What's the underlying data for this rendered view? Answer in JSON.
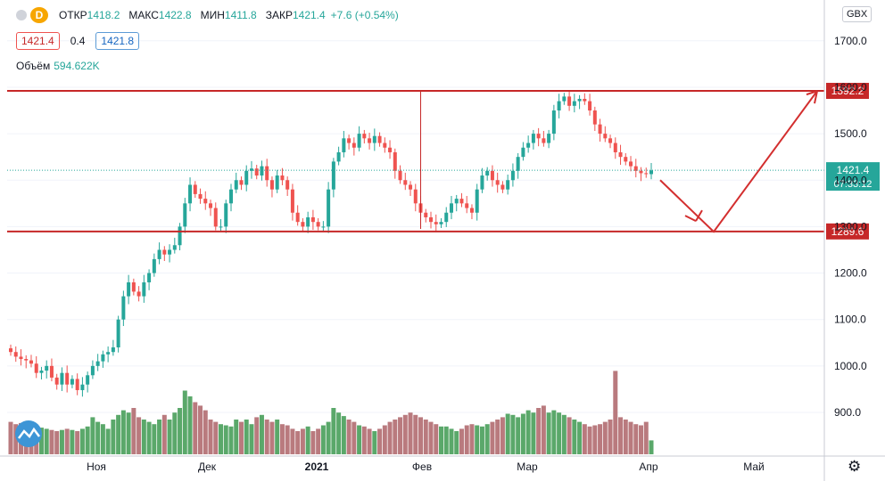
{
  "header": {
    "symbol_badge": "D",
    "open_label": "ОТКР",
    "open": "1418.2",
    "high_label": "МАКС",
    "high": "1422.8",
    "low_label": "МИН",
    "low": "1411.8",
    "close_label": "ЗАКР",
    "close": "1421.4",
    "change": "+7.6 (+0.54%)"
  },
  "quote": {
    "bid": "1421.4",
    "spread": "0.4",
    "ask": "1421.8"
  },
  "volume": {
    "label": "Объём",
    "value": "594.622K"
  },
  "currency_label": "GBX",
  "colors": {
    "up": "#26a69a",
    "down": "#ef5350",
    "vol_up": "#5aa86a",
    "vol_down": "#b97a7e",
    "level": "#c62828"
  },
  "chart_data": {
    "type": "candlestick",
    "y_ticks": [
      900,
      1000,
      1100,
      1200,
      1300,
      1400,
      1500,
      1600,
      1700
    ],
    "y_tick_labels": [
      "900.0",
      "1000.0",
      "1100.0",
      "1200.0",
      "1300.0",
      "1400.0",
      "1500.0",
      "1600.0",
      "1700.0"
    ],
    "x_labels": [
      "Ноя",
      "Дек",
      "2021",
      "Фев",
      "Мар",
      "Апр",
      "Май"
    ],
    "levels": [
      {
        "value": 1592.2,
        "label": "1592.2"
      },
      {
        "value": 1289.6,
        "label": "1289.6"
      }
    ],
    "last_price": {
      "value": 1421.4,
      "label": "1421.4",
      "timer": "07:33:12"
    },
    "projection": [
      [
        1400,
        1378
      ],
      [
        1460,
        1300
      ],
      [
        1600,
        1583
      ]
    ],
    "closes": [
      1030,
      1020,
      1015,
      1012,
      1005,
      985,
      990,
      1000,
      975,
      960,
      985,
      960,
      972,
      948,
      960,
      980,
      1000,
      1010,
      1025,
      1030,
      1040,
      1100,
      1150,
      1180,
      1160,
      1150,
      1180,
      1200,
      1230,
      1250,
      1240,
      1250,
      1260,
      1300,
      1350,
      1390,
      1370,
      1360,
      1350,
      1340,
      1300,
      1300,
      1350,
      1380,
      1400,
      1390,
      1420,
      1425,
      1410,
      1430,
      1400,
      1380,
      1410,
      1400,
      1380,
      1330,
      1310,
      1300,
      1320,
      1310,
      1300,
      1300,
      1380,
      1440,
      1460,
      1490,
      1480,
      1470,
      1500,
      1490,
      1480,
      1495,
      1480,
      1470,
      1460,
      1420,
      1400,
      1390,
      1380,
      1350,
      1330,
      1320,
      1310,
      1305,
      1310,
      1330,
      1350,
      1360,
      1350,
      1340,
      1330,
      1380,
      1410,
      1420,
      1400,
      1390,
      1380,
      1400,
      1420,
      1450,
      1470,
      1480,
      1500,
      1490,
      1480,
      1500,
      1550,
      1570,
      1580,
      1560,
      1570,
      1575,
      1570,
      1550,
      1520,
      1500,
      1490,
      1480,
      1460,
      1450,
      1440,
      1430,
      1420,
      1415,
      1413,
      1421
    ],
    "volumes": [
      0.28,
      0.26,
      0.27,
      0.25,
      0.24,
      0.22,
      0.23,
      0.22,
      0.21,
      0.2,
      0.21,
      0.22,
      0.21,
      0.2,
      0.22,
      0.24,
      0.32,
      0.28,
      0.26,
      0.22,
      0.3,
      0.34,
      0.38,
      0.36,
      0.4,
      0.32,
      0.3,
      0.28,
      0.26,
      0.3,
      0.34,
      0.3,
      0.36,
      0.4,
      0.55,
      0.5,
      0.45,
      0.42,
      0.38,
      0.3,
      0.28,
      0.26,
      0.25,
      0.24,
      0.3,
      0.28,
      0.3,
      0.26,
      0.32,
      0.34,
      0.3,
      0.28,
      0.3,
      0.26,
      0.25,
      0.22,
      0.2,
      0.22,
      0.24,
      0.2,
      0.22,
      0.25,
      0.28,
      0.4,
      0.36,
      0.33,
      0.3,
      0.28,
      0.25,
      0.24,
      0.22,
      0.2,
      0.22,
      0.25,
      0.28,
      0.3,
      0.32,
      0.34,
      0.36,
      0.34,
      0.32,
      0.3,
      0.28,
      0.26,
      0.24,
      0.24,
      0.22,
      0.2,
      0.22,
      0.25,
      0.26,
      0.25,
      0.24,
      0.26,
      0.28,
      0.3,
      0.32,
      0.35,
      0.34,
      0.32,
      0.35,
      0.38,
      0.36,
      0.4,
      0.42,
      0.36,
      0.38,
      0.36,
      0.34,
      0.32,
      0.3,
      0.28,
      0.26,
      0.24,
      0.25,
      0.26,
      0.28,
      0.3,
      0.72,
      0.32,
      0.3,
      0.28,
      0.26,
      0.25,
      0.28,
      0.12
    ]
  }
}
